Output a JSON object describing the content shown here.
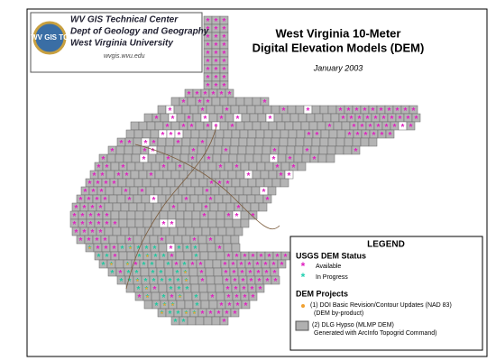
{
  "logo": {
    "badge": "WV GIS TC",
    "lines": [
      "WV GIS Technical Center",
      "Dept of Geology and Geography",
      "West Virginia University"
    ],
    "url": "wvgis.wvu.edu"
  },
  "title": {
    "lines": [
      "West Virginia 10-Meter",
      "Digital Elevation Models (DEM)"
    ],
    "date": "January 2003"
  },
  "legend": {
    "title": "LEGEND",
    "status_heading": "USGS DEM Status",
    "status": [
      "Available",
      "In Progress"
    ],
    "projects_heading": "DEM Projects",
    "projects": [
      [
        "(1) DOI Basic Revision/Contour Updates (NAD 83)",
        "(DEM by-product)"
      ],
      [
        "(2) DLG Hypso (MLMP DEM)",
        "Generated with ArcInfo Topogrid Command)"
      ]
    ]
  }
}
